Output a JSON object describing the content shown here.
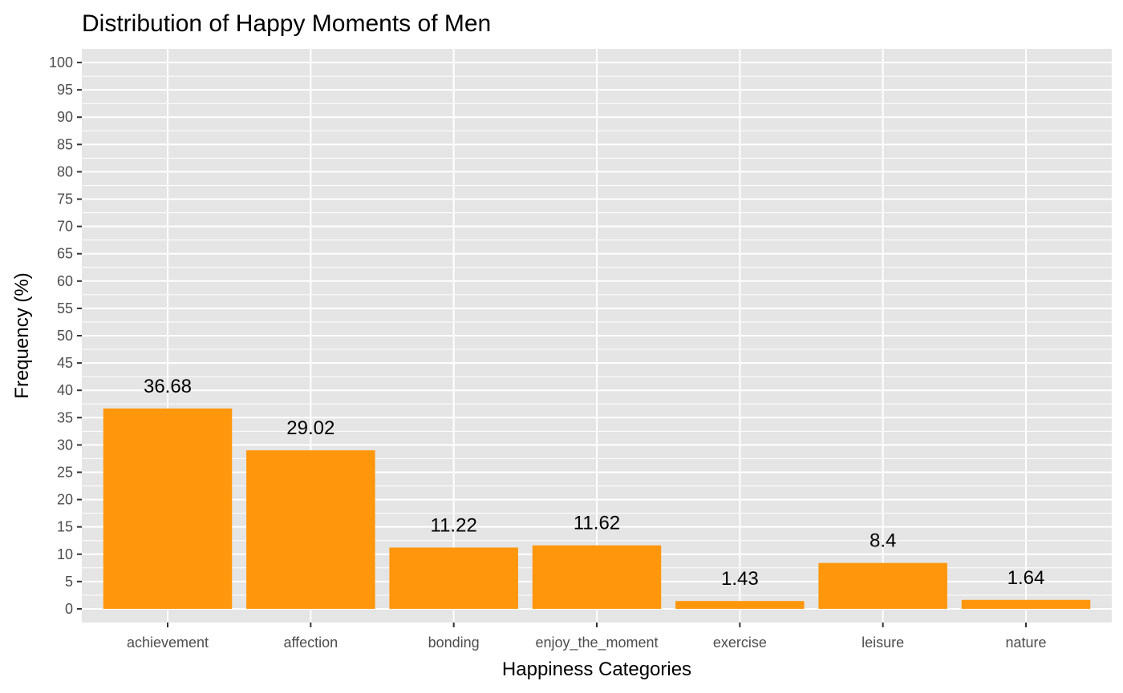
{
  "chart_data": {
    "type": "bar",
    "title": "Distribution of Happy Moments of Men",
    "xlabel": "Happiness Categories",
    "ylabel": "Frequency (%)",
    "categories": [
      "achievement",
      "affection",
      "bonding",
      "enjoy_the_moment",
      "exercise",
      "leisure",
      "nature"
    ],
    "values": [
      36.68,
      29.02,
      11.22,
      11.62,
      1.43,
      8.4,
      1.64
    ],
    "data_labels": [
      "36.68",
      "29.02",
      "11.22",
      "11.62",
      "1.43",
      "8.4",
      "1.64"
    ],
    "yticks": [
      0,
      5,
      10,
      15,
      20,
      25,
      30,
      35,
      40,
      45,
      50,
      55,
      60,
      65,
      70,
      75,
      80,
      85,
      90,
      95,
      100
    ],
    "ylim": [
      -2.5,
      102.5
    ],
    "grid": true,
    "legend": "none",
    "colors": {
      "bar": "#ff960c",
      "panel": "#e5e5e5",
      "grid": "#ffffff"
    }
  }
}
